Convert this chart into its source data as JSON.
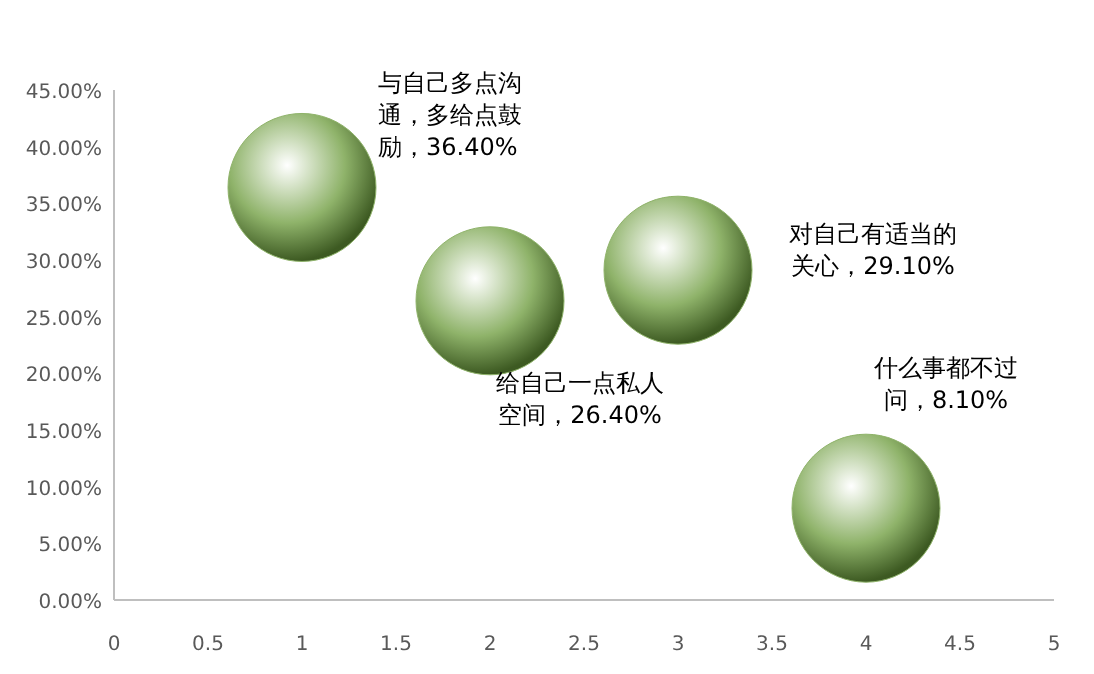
{
  "chart_data": {
    "type": "bubble",
    "x": [
      1,
      2,
      3,
      4
    ],
    "values": [
      36.4,
      26.4,
      29.1,
      8.1
    ],
    "sizes": [
      1,
      1,
      1,
      1
    ],
    "color": "#8fb36a",
    "xlim": [
      0,
      5
    ],
    "xticks": [
      0,
      0.5,
      1,
      1.5,
      2,
      2.5,
      3,
      3.5,
      4,
      4.5,
      5
    ],
    "ylim": [
      0,
      45
    ],
    "yticks": [
      {
        "value": 0,
        "label": "0.00%"
      },
      {
        "value": 5,
        "label": "5.00%"
      },
      {
        "value": 10,
        "label": "10.00%"
      },
      {
        "value": 15,
        "label": "15.00%"
      },
      {
        "value": 20,
        "label": "20.00%"
      },
      {
        "value": 25,
        "label": "25.00%"
      },
      {
        "value": 30,
        "label": "30.00%"
      },
      {
        "value": 35,
        "label": "35.00%"
      },
      {
        "value": 40,
        "label": "40.00%"
      },
      {
        "value": 45,
        "label": "45.00%"
      }
    ],
    "grid": false,
    "annotations": [
      "与自己多点沟通，多给点鼓励，36.40%",
      "给自己一点私人空间，26.40%",
      "对自己有适当的关心，29.10%",
      "什么事都不过问，8.10%"
    ]
  }
}
